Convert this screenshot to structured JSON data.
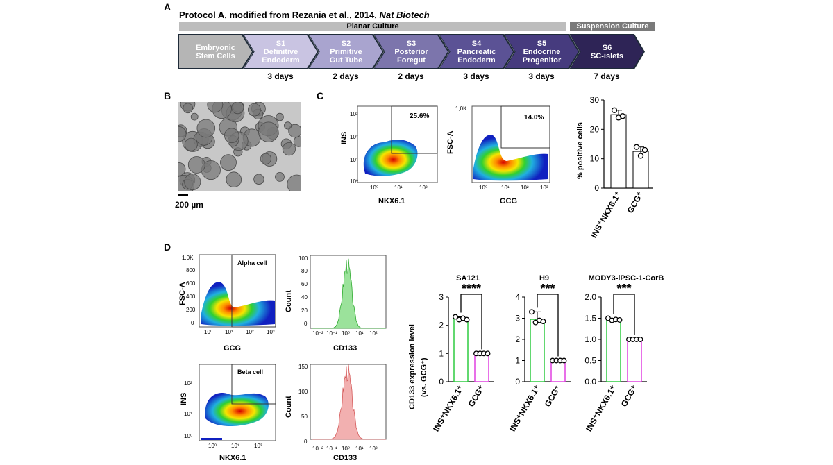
{
  "panels": {
    "a": "A",
    "b": "B",
    "c": "C",
    "d": "D"
  },
  "protocol": {
    "title_prefix": "Protocol A, modified from Rezania et al., 2014, ",
    "title_journal": "Nat Biotech",
    "planar_label": "Planar Culture",
    "suspension_label": "Suspension Culture",
    "stages": [
      {
        "id": "",
        "line1": "Embryonic",
        "line2": "Stem Cells",
        "color": "#b5b5b5"
      },
      {
        "id": "S1",
        "line1": "Definitive",
        "line2": "Endoderm",
        "color": "#c9c4e2"
      },
      {
        "id": "S2",
        "line1": "Primitive",
        "line2": "Gut Tube",
        "color": "#a9a4cf"
      },
      {
        "id": "S3",
        "line1": "Posterior",
        "line2": "Foregut",
        "color": "#7c75ac"
      },
      {
        "id": "S4",
        "line1": "Pancreatic",
        "line2": "Endoderm",
        "color": "#5b5295"
      },
      {
        "id": "S5",
        "line1": "Endocrine",
        "line2": "Progenitor",
        "color": "#463b7e"
      },
      {
        "id": "S6",
        "line1": "SC-islets",
        "line2": "",
        "color": "#2e2456"
      }
    ],
    "days": [
      "3 days",
      "2 days",
      "2 days",
      "3 days",
      "3 days",
      "7 days"
    ]
  },
  "panel_b": {
    "scale_label": "200 µm"
  },
  "panel_c": {
    "flow1": {
      "ylabel": "INS",
      "xlabel": "NKX6.1",
      "gate": "25.6%",
      "xticks": [
        "10⁰",
        "10¹",
        "10²"
      ],
      "yticks": [
        "10³",
        "10²",
        "10¹",
        "10⁰"
      ]
    },
    "flow2": {
      "ylabel": "FSC-A",
      "xlabel": "GCG",
      "gate": "14.0%",
      "xticks": [
        "10⁰",
        "10¹",
        "10²",
        "10³"
      ],
      "yticks": [
        "1,0K"
      ]
    },
    "bar": {
      "ylabel": "% positive cells",
      "yticks": [
        "30",
        "20",
        "10",
        "0"
      ],
      "categories": [
        "INS⁺NKX6.1⁺",
        "GCG⁺"
      ]
    }
  },
  "panel_d": {
    "alpha": {
      "ylabel": "FSC-A",
      "xlabel": "GCG",
      "gate": "Alpha cell",
      "xticks": [
        "10⁰",
        "10¹",
        "10²",
        "10³"
      ],
      "yticks": [
        "1,0K",
        "800",
        "600",
        "400",
        "200",
        "0"
      ]
    },
    "beta": {
      "ylabel": "INS",
      "xlabel": "NKX6.1",
      "gate": "Beta cell",
      "xticks": [
        "10⁰",
        "10¹",
        "10²"
      ],
      "yticks": [
        "10²",
        "10¹",
        "10⁰"
      ]
    },
    "hist_green": {
      "ylabel": "Count",
      "xlabel": "CD133",
      "yticks": [
        "100",
        "80",
        "60",
        "40",
        "20",
        "0"
      ],
      "xticks": [
        "10⁻²",
        "10⁻¹",
        "10⁰",
        "10¹",
        "10²"
      ]
    },
    "hist_red": {
      "ylabel": "Count",
      "xlabel": "CD133",
      "yticks": [
        "150",
        "100",
        "50",
        "0"
      ],
      "xticks": [
        "10⁻²",
        "10⁻¹",
        "10⁰",
        "10¹",
        "10²"
      ]
    },
    "bar_ylabel_1": "CD133 expression level",
    "bar_ylabel_2": "(vs. GCG⁺)",
    "categories": [
      "INS⁺NKX6.1⁺",
      "GCG⁺"
    ]
  },
  "chart_data": [
    {
      "type": "bar",
      "panel": "C",
      "categories": [
        "INS⁺NKX6.1⁺",
        "GCG⁺"
      ],
      "values": [
        25,
        12.5
      ],
      "points": [
        [
          26.5,
          24,
          24.5
        ],
        [
          14,
          11,
          13
        ]
      ],
      "title": "",
      "ylabel": "% positive cells",
      "ylim": [
        0,
        30
      ],
      "color": "#ffffff"
    },
    {
      "type": "bar",
      "panel": "D",
      "title": "SA121",
      "significance": "****",
      "categories": [
        "INS⁺NKX6.1⁺",
        "GCG⁺"
      ],
      "values": [
        2.25,
        1.0
      ],
      "points": [
        [
          2.3,
          2.2,
          2.25,
          2.2
        ],
        [
          1,
          1,
          1,
          1
        ]
      ],
      "ylim": [
        0,
        3
      ],
      "yticks": [
        0,
        1,
        2,
        3
      ],
      "colors": [
        "#2ecc40",
        "#e040e0"
      ]
    },
    {
      "type": "bar",
      "panel": "D",
      "title": "H9",
      "significance": "***",
      "categories": [
        "INS⁺NKX6.1⁺",
        "GCG⁺"
      ],
      "values": [
        2.95,
        1.0
      ],
      "points": [
        [
          3.3,
          2.8,
          2.9,
          2.85
        ],
        [
          1,
          1,
          1,
          1
        ]
      ],
      "ylim": [
        0,
        4
      ],
      "yticks": [
        0,
        1,
        2,
        3,
        4
      ],
      "colors": [
        "#2ecc40",
        "#e040e0"
      ]
    },
    {
      "type": "bar",
      "panel": "D",
      "title": "MODY3-iPSC-1-CorB",
      "significance": "***",
      "categories": [
        "INS⁺NKX6.1⁺",
        "GCG⁺"
      ],
      "values": [
        1.47,
        1.0
      ],
      "points": [
        [
          1.5,
          1.45,
          1.47,
          1.46
        ],
        [
          1,
          1,
          1,
          1
        ]
      ],
      "ylim": [
        0,
        2
      ],
      "yticks": [
        0,
        0.5,
        1.0,
        1.5,
        2.0
      ],
      "colors": [
        "#2ecc40",
        "#e040e0"
      ]
    }
  ]
}
